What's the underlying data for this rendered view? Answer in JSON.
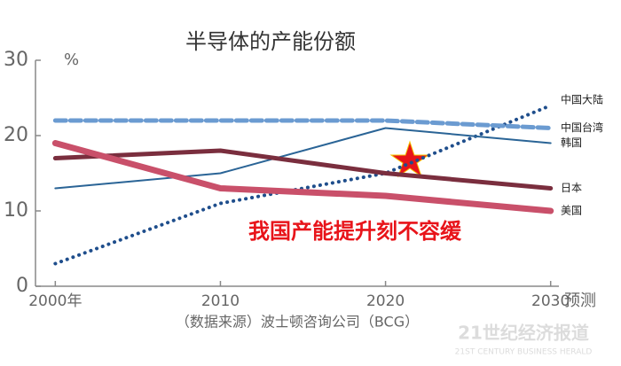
{
  "chart_data": {
    "type": "line",
    "title": "半导体的产能份额",
    "y_unit": "%",
    "x_label": "预测",
    "source": "（数据来源）波士顿咨询公司（BCG）",
    "annotation": "我国产能提升刻不容缓",
    "watermark": "21世纪经济报道",
    "watermark_sub": "21ST CENTURY BUSINESS HERALD",
    "x": [
      2000,
      2010,
      2020,
      2030
    ],
    "xlim": [
      1998.8,
      2030.5
    ],
    "xticks": [
      {
        "value": 2000,
        "label": "2000年"
      },
      2010,
      2020,
      2030
    ],
    "ylim": [
      0,
      30
    ],
    "yticks": [
      0,
      10,
      20,
      30
    ],
    "series": [
      {
        "name": "中国大陆",
        "color": "#1f4e8c",
        "style": "dotted",
        "width": 4,
        "values": [
          3,
          11,
          15,
          24
        ]
      },
      {
        "name": "中国台湾",
        "color": "#6b9bd1",
        "style": "dashed",
        "width": 5,
        "values": [
          22,
          22,
          22,
          21
        ]
      },
      {
        "name": "韩国",
        "color": "#2a6496",
        "style": "solid",
        "width": 2,
        "values": [
          13,
          15,
          21,
          19
        ]
      },
      {
        "name": "日本",
        "color": "#7a2e3e",
        "style": "solid",
        "width": 5,
        "values": [
          17,
          18,
          15,
          13
        ]
      },
      {
        "name": "美国",
        "color": "#c9506a",
        "style": "solid",
        "width": 7,
        "values": [
          19,
          13,
          12,
          10
        ]
      }
    ]
  }
}
